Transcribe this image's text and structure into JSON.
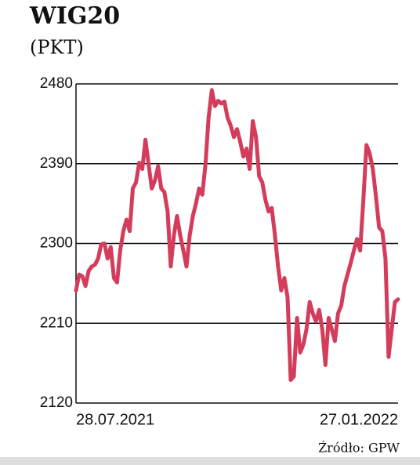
{
  "chart_data": {
    "type": "line",
    "title": "WIG20",
    "subtitle": "(PKT)",
    "source": "Źródło: GPW",
    "categories": [
      "28.07.2021",
      null,
      null,
      null,
      null,
      null,
      null,
      null,
      null,
      null,
      null,
      null,
      null,
      null,
      null,
      null,
      null,
      null,
      null,
      null,
      null,
      null,
      null,
      null,
      null,
      null,
      null,
      null,
      null,
      null,
      null,
      null,
      null,
      null,
      null,
      null,
      null,
      null,
      null,
      null,
      null,
      null,
      null,
      null,
      null,
      null,
      null,
      null,
      null,
      null,
      null,
      null,
      null,
      null,
      null,
      null,
      null,
      null,
      null,
      null,
      null,
      null,
      null,
      null,
      null,
      null,
      null,
      null,
      null,
      null,
      null,
      null,
      null,
      null,
      null,
      null,
      null,
      null,
      null,
      null,
      null,
      null,
      null,
      null,
      null,
      null,
      null,
      null,
      null,
      null,
      null,
      null,
      null,
      null,
      null,
      null,
      null,
      null,
      null,
      null,
      null,
      null,
      "27.01.2022"
    ],
    "series": [
      {
        "color": "#d43c5c",
        "values": [
          2247,
          2265,
          2263,
          2252,
          2269,
          2274,
          2276,
          2283,
          2299,
          2300,
          2283,
          2296,
          2261,
          2256,
          2292,
          2314,
          2327,
          2314,
          2362,
          2369,
          2391,
          2384,
          2417,
          2389,
          2362,
          2371,
          2387,
          2362,
          2358,
          2336,
          2274,
          2309,
          2331,
          2309,
          2292,
          2274,
          2309,
          2331,
          2345,
          2362,
          2355,
          2389,
          2442,
          2473,
          2455,
          2461,
          2458,
          2460,
          2442,
          2433,
          2420,
          2429,
          2415,
          2398,
          2407,
          2384,
          2438,
          2420,
          2376,
          2369,
          2349,
          2336,
          2340,
          2309,
          2274,
          2247,
          2261,
          2239,
          2146,
          2150,
          2216,
          2177,
          2186,
          2203,
          2234,
          2221,
          2212,
          2225,
          2203,
          2163,
          2216,
          2203,
          2190,
          2221,
          2230,
          2252,
          2265,
          2278,
          2292,
          2305,
          2292,
          2349,
          2411,
          2402,
          2384,
          2353,
          2318,
          2314,
          2283,
          2172,
          2203,
          2234,
          2237
        ]
      }
    ],
    "ylim": [
      2120,
      2480
    ],
    "yticks": [
      2120,
      2210,
      2300,
      2390,
      2480
    ],
    "grid": true
  }
}
